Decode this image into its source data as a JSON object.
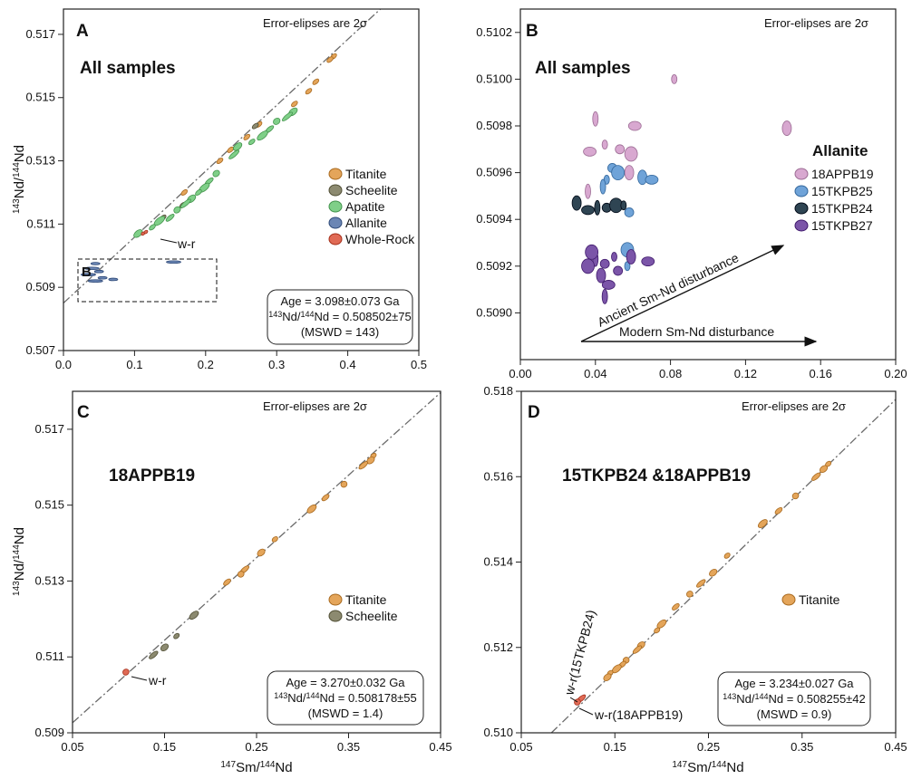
{
  "ylabel": "143Nd/144Nd",
  "xlabel": "147Sm/144Nd",
  "colors": {
    "titanite": "#e4a55a",
    "scheelite": "#8c8a70",
    "apatite": "#7fcf88",
    "allanite": "#6b86b4",
    "wholerock": "#e06a55",
    "a18APPB19": "#d8a8d0",
    "a15TKPB25": "#6fa3d8",
    "a15TKPB24": "#2f4553",
    "a15TKPB27": "#7b55a8"
  },
  "chart_data": [
    {
      "panel": "A",
      "type": "scatter",
      "error_note": "Error-elipses are 2σ",
      "title": "All samples",
      "xlim": [
        0.0,
        0.5
      ],
      "ylim": [
        0.507,
        0.5178
      ],
      "xticks": [
        "0.0",
        "0.1",
        "0.2",
        "0.3",
        "0.4",
        "0.5"
      ],
      "yticks": [
        "0.507",
        "0.509",
        "0.511",
        "0.513",
        "0.515",
        "0.517"
      ],
      "legend": [
        "Titanite",
        "Scheelite",
        "Apatite",
        "Allanite",
        "Whole-Rock"
      ],
      "inset_label": "B",
      "wr_label": "w-r",
      "isochron": {
        "intercept": 0.508502,
        "slope": 0.02085
      },
      "stats": {
        "age": "Age = 3.098±0.073 Ga",
        "ratio_sup": "143",
        "ratio_mid": "Nd/",
        "ratio_sup2": "144",
        "ratio_tail": "Nd = 0.508502±75",
        "mswd": "(MSWD = 143)"
      },
      "points": [
        {
          "mineral": "titanite",
          "x": 0.38,
          "y": 0.5163
        },
        {
          "mineral": "titanite",
          "x": 0.375,
          "y": 0.5162
        },
        {
          "mineral": "titanite",
          "x": 0.355,
          "y": 0.5155
        },
        {
          "mineral": "titanite",
          "x": 0.345,
          "y": 0.5152
        },
        {
          "mineral": "titanite",
          "x": 0.325,
          "y": 0.5148
        },
        {
          "mineral": "titanite",
          "x": 0.275,
          "y": 0.51415
        },
        {
          "mineral": "titanite",
          "x": 0.258,
          "y": 0.51375
        },
        {
          "mineral": "titanite",
          "x": 0.235,
          "y": 0.51335
        },
        {
          "mineral": "titanite",
          "x": 0.22,
          "y": 0.513
        },
        {
          "mineral": "titanite",
          "x": 0.17,
          "y": 0.512
        },
        {
          "mineral": "scheelite",
          "x": 0.27,
          "y": 0.5141
        },
        {
          "mineral": "scheelite",
          "x": 0.168,
          "y": 0.5116
        },
        {
          "mineral": "scheelite",
          "x": 0.14,
          "y": 0.5112
        },
        {
          "mineral": "apatite",
          "x": 0.323,
          "y": 0.51455
        },
        {
          "mineral": "apatite",
          "x": 0.315,
          "y": 0.5144
        },
        {
          "mineral": "apatite",
          "x": 0.3,
          "y": 0.51425
        },
        {
          "mineral": "apatite",
          "x": 0.29,
          "y": 0.514
        },
        {
          "mineral": "apatite",
          "x": 0.28,
          "y": 0.5138
        },
        {
          "mineral": "apatite",
          "x": 0.265,
          "y": 0.5136
        },
        {
          "mineral": "apatite",
          "x": 0.245,
          "y": 0.51345
        },
        {
          "mineral": "apatite",
          "x": 0.24,
          "y": 0.5132
        },
        {
          "mineral": "apatite",
          "x": 0.215,
          "y": 0.5126
        },
        {
          "mineral": "apatite",
          "x": 0.205,
          "y": 0.51235
        },
        {
          "mineral": "apatite",
          "x": 0.198,
          "y": 0.51215
        },
        {
          "mineral": "apatite",
          "x": 0.19,
          "y": 0.512
        },
        {
          "mineral": "apatite",
          "x": 0.18,
          "y": 0.5118
        },
        {
          "mineral": "apatite",
          "x": 0.172,
          "y": 0.51165
        },
        {
          "mineral": "apatite",
          "x": 0.16,
          "y": 0.51145
        },
        {
          "mineral": "apatite",
          "x": 0.15,
          "y": 0.5112
        },
        {
          "mineral": "apatite",
          "x": 0.135,
          "y": 0.5111
        },
        {
          "mineral": "apatite",
          "x": 0.125,
          "y": 0.5109
        },
        {
          "mineral": "apatite",
          "x": 0.105,
          "y": 0.5107
        },
        {
          "mineral": "allanite",
          "x": 0.045,
          "y": 0.50975
        },
        {
          "mineral": "allanite",
          "x": 0.04,
          "y": 0.5096
        },
        {
          "mineral": "allanite",
          "x": 0.05,
          "y": 0.5095
        },
        {
          "mineral": "allanite",
          "x": 0.035,
          "y": 0.5094
        },
        {
          "mineral": "allanite",
          "x": 0.055,
          "y": 0.5093
        },
        {
          "mineral": "allanite",
          "x": 0.045,
          "y": 0.5092
        },
        {
          "mineral": "allanite",
          "x": 0.07,
          "y": 0.50925
        },
        {
          "mineral": "allanite",
          "x": 0.155,
          "y": 0.5098
        },
        {
          "mineral": "wholerock",
          "x": 0.112,
          "y": 0.5107
        },
        {
          "mineral": "wholerock",
          "x": 0.116,
          "y": 0.51075
        }
      ]
    },
    {
      "panel": "B",
      "type": "scatter",
      "error_note": "Error-elipses are 2σ",
      "title": "All samples",
      "xlim": [
        0.0,
        0.2
      ],
      "ylim": [
        0.5088,
        0.5103
      ],
      "xticks": [
        "0.00",
        "0.04",
        "0.08",
        "0.12",
        "0.16",
        "0.20"
      ],
      "yticks": [
        "0.5090",
        "0.5092",
        "0.5094",
        "0.5096",
        "0.5098",
        "0.5100",
        "0.5102"
      ],
      "legend_title": "Allanite",
      "legend": [
        "18APPB19",
        "15TKPB25",
        "15TKPB24",
        "15TKPB27"
      ],
      "arrows": [
        "Ancient Sm-Nd disturbance",
        "Modern Sm-Nd disturbance"
      ],
      "points": [
        {
          "sample": "a18APPB19",
          "x": 0.082,
          "y": 0.51
        },
        {
          "sample": "a18APPB19",
          "x": 0.142,
          "y": 0.50979
        },
        {
          "sample": "a18APPB19",
          "x": 0.061,
          "y": 0.5098
        },
        {
          "sample": "a18APPB19",
          "x": 0.04,
          "y": 0.50983
        },
        {
          "sample": "a18APPB19",
          "x": 0.053,
          "y": 0.5097
        },
        {
          "sample": "a18APPB19",
          "x": 0.059,
          "y": 0.50968
        },
        {
          "sample": "a18APPB19",
          "x": 0.045,
          "y": 0.50972
        },
        {
          "sample": "a18APPB19",
          "x": 0.058,
          "y": 0.5096
        },
        {
          "sample": "a18APPB19",
          "x": 0.037,
          "y": 0.50969
        },
        {
          "sample": "a18APPB19",
          "x": 0.036,
          "y": 0.50952
        },
        {
          "sample": "a15TKPB25",
          "x": 0.049,
          "y": 0.50962
        },
        {
          "sample": "a15TKPB25",
          "x": 0.052,
          "y": 0.5096
        },
        {
          "sample": "a15TKPB25",
          "x": 0.046,
          "y": 0.50957
        },
        {
          "sample": "a15TKPB25",
          "x": 0.065,
          "y": 0.50958
        },
        {
          "sample": "a15TKPB25",
          "x": 0.07,
          "y": 0.50957
        },
        {
          "sample": "a15TKPB25",
          "x": 0.044,
          "y": 0.50954
        },
        {
          "sample": "a15TKPB25",
          "x": 0.058,
          "y": 0.50943
        },
        {
          "sample": "a15TKPB25",
          "x": 0.057,
          "y": 0.50927
        },
        {
          "sample": "a15TKPB25",
          "x": 0.057,
          "y": 0.5092
        },
        {
          "sample": "a15TKPB24",
          "x": 0.03,
          "y": 0.50947
        },
        {
          "sample": "a15TKPB24",
          "x": 0.036,
          "y": 0.50944
        },
        {
          "sample": "a15TKPB24",
          "x": 0.041,
          "y": 0.50945
        },
        {
          "sample": "a15TKPB24",
          "x": 0.046,
          "y": 0.50945
        },
        {
          "sample": "a15TKPB24",
          "x": 0.051,
          "y": 0.50946
        },
        {
          "sample": "a15TKPB24",
          "x": 0.055,
          "y": 0.50946
        },
        {
          "sample": "a15TKPB27",
          "x": 0.059,
          "y": 0.50924
        },
        {
          "sample": "a15TKPB27",
          "x": 0.068,
          "y": 0.50922
        },
        {
          "sample": "a15TKPB27",
          "x": 0.04,
          "y": 0.50923
        },
        {
          "sample": "a15TKPB27",
          "x": 0.045,
          "y": 0.50921
        },
        {
          "sample": "a15TKPB27",
          "x": 0.036,
          "y": 0.5092
        },
        {
          "sample": "a15TKPB27",
          "x": 0.05,
          "y": 0.50924
        },
        {
          "sample": "a15TKPB27",
          "x": 0.043,
          "y": 0.50916
        },
        {
          "sample": "a15TKPB27",
          "x": 0.047,
          "y": 0.50912
        },
        {
          "sample": "a15TKPB27",
          "x": 0.045,
          "y": 0.50907
        },
        {
          "sample": "a15TKPB27",
          "x": 0.052,
          "y": 0.50918
        },
        {
          "sample": "a15TKPB27",
          "x": 0.038,
          "y": 0.50926
        }
      ]
    },
    {
      "panel": "C",
      "type": "scatter",
      "error_note": "Error-elipses are 2σ",
      "title": "18APPB19",
      "xlim": [
        0.05,
        0.45
      ],
      "ylim": [
        0.509,
        0.518
      ],
      "xticks": [
        "0.05",
        "0.15",
        "0.25",
        "0.35",
        "0.45"
      ],
      "yticks": [
        "0.509",
        "0.511",
        "0.513",
        "0.515",
        "0.517"
      ],
      "legend": [
        "Titanite",
        "Scheelite"
      ],
      "wr_label": "w-r",
      "isochron": {
        "intercept": 0.508178,
        "slope": 0.02175
      },
      "stats": {
        "age": "Age = 3.270±0.032 Ga",
        "ratio_sup": "143",
        "ratio_mid": "Nd/",
        "ratio_sup2": "144",
        "ratio_tail": "Nd = 0.508178±55",
        "mswd": "(MSWD = 1.4)"
      },
      "points": [
        {
          "mineral": "titanite",
          "x": 0.377,
          "y": 0.5163
        },
        {
          "mineral": "titanite",
          "x": 0.374,
          "y": 0.51618
        },
        {
          "mineral": "titanite",
          "x": 0.366,
          "y": 0.51605
        },
        {
          "mineral": "titanite",
          "x": 0.345,
          "y": 0.51555
        },
        {
          "mineral": "titanite",
          "x": 0.325,
          "y": 0.5152
        },
        {
          "mineral": "titanite",
          "x": 0.31,
          "y": 0.5149
        },
        {
          "mineral": "titanite",
          "x": 0.27,
          "y": 0.5141
        },
        {
          "mineral": "titanite",
          "x": 0.255,
          "y": 0.51375
        },
        {
          "mineral": "titanite",
          "x": 0.237,
          "y": 0.5133
        },
        {
          "mineral": "titanite",
          "x": 0.233,
          "y": 0.51318
        },
        {
          "mineral": "titanite",
          "x": 0.218,
          "y": 0.51297
        },
        {
          "mineral": "scheelite",
          "x": 0.182,
          "y": 0.5121
        },
        {
          "mineral": "scheelite",
          "x": 0.163,
          "y": 0.51155
        },
        {
          "mineral": "scheelite",
          "x": 0.15,
          "y": 0.51125
        },
        {
          "mineral": "scheelite",
          "x": 0.138,
          "y": 0.51105
        },
        {
          "mineral": "wholerock",
          "x": 0.108,
          "y": 0.5106
        }
      ]
    },
    {
      "panel": "D",
      "type": "scatter",
      "error_note": "Error-elipses are 2σ",
      "title": "15TKPB24 &18APPB19",
      "xlim": [
        0.05,
        0.45
      ],
      "ylim": [
        0.51,
        0.518
      ],
      "xticks": [
        "0.05",
        "0.15",
        "0.25",
        "0.35",
        "0.45"
      ],
      "yticks": [
        "0.510",
        "0.512",
        "0.514",
        "0.516",
        "0.518"
      ],
      "legend": [
        "Titanite"
      ],
      "wr_labels": [
        "w-r(15TKPB24)",
        "w-r(18APPB19)"
      ],
      "isochron": {
        "intercept": 0.508255,
        "slope": 0.02123
      },
      "stats": {
        "age": "Age = 3.234±0.027 Ga",
        "ratio_sup": "143",
        "ratio_mid": "Nd/",
        "ratio_sup2": "144",
        "ratio_tail": "Nd = 0.508255±42",
        "mswd": "(MSWD = 0.9)"
      },
      "points": [
        {
          "mineral": "titanite",
          "x": 0.378,
          "y": 0.5163
        },
        {
          "mineral": "titanite",
          "x": 0.373,
          "y": 0.51618
        },
        {
          "mineral": "titanite",
          "x": 0.365,
          "y": 0.516
        },
        {
          "mineral": "titanite",
          "x": 0.343,
          "y": 0.51555
        },
        {
          "mineral": "titanite",
          "x": 0.325,
          "y": 0.5152
        },
        {
          "mineral": "titanite",
          "x": 0.308,
          "y": 0.5149
        },
        {
          "mineral": "titanite",
          "x": 0.27,
          "y": 0.51415
        },
        {
          "mineral": "titanite",
          "x": 0.255,
          "y": 0.51375
        },
        {
          "mineral": "titanite",
          "x": 0.242,
          "y": 0.5135
        },
        {
          "mineral": "titanite",
          "x": 0.23,
          "y": 0.51325
        },
        {
          "mineral": "titanite",
          "x": 0.215,
          "y": 0.51295
        },
        {
          "mineral": "titanite",
          "x": 0.2,
          "y": 0.51255
        },
        {
          "mineral": "titanite",
          "x": 0.195,
          "y": 0.5124
        },
        {
          "mineral": "titanite",
          "x": 0.178,
          "y": 0.51205
        },
        {
          "mineral": "titanite",
          "x": 0.174,
          "y": 0.51195
        },
        {
          "mineral": "titanite",
          "x": 0.162,
          "y": 0.5117
        },
        {
          "mineral": "titanite",
          "x": 0.158,
          "y": 0.5116
        },
        {
          "mineral": "titanite",
          "x": 0.152,
          "y": 0.5115
        },
        {
          "mineral": "titanite",
          "x": 0.145,
          "y": 0.5114
        },
        {
          "mineral": "titanite",
          "x": 0.142,
          "y": 0.5113
        },
        {
          "mineral": "wholerock",
          "x": 0.114,
          "y": 0.5108
        },
        {
          "mineral": "wholerock",
          "x": 0.11,
          "y": 0.51072
        }
      ]
    }
  ]
}
